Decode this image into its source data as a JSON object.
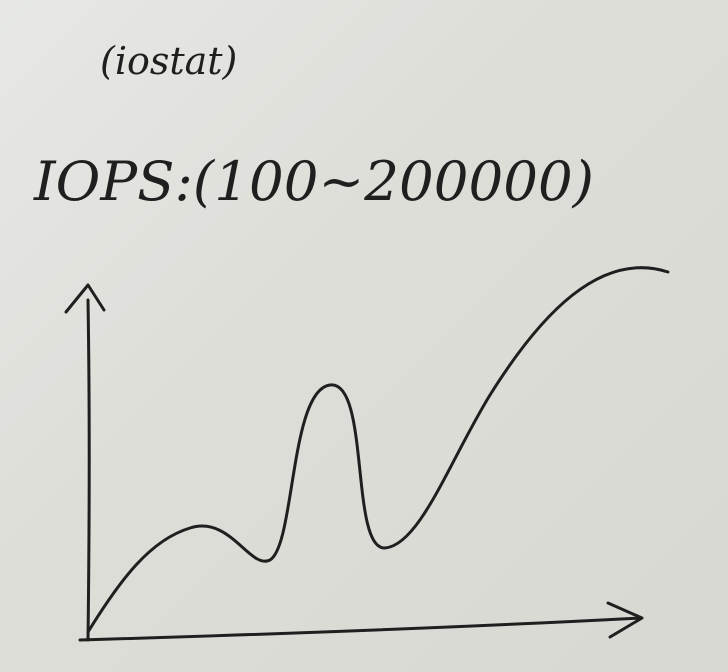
{
  "annotation": {
    "tool_note": "(iostat)",
    "metric_label": "IOPS:(100~200000)"
  },
  "colors": {
    "paper": "#dcdcd7",
    "ink": "#1f1f1f"
  }
}
